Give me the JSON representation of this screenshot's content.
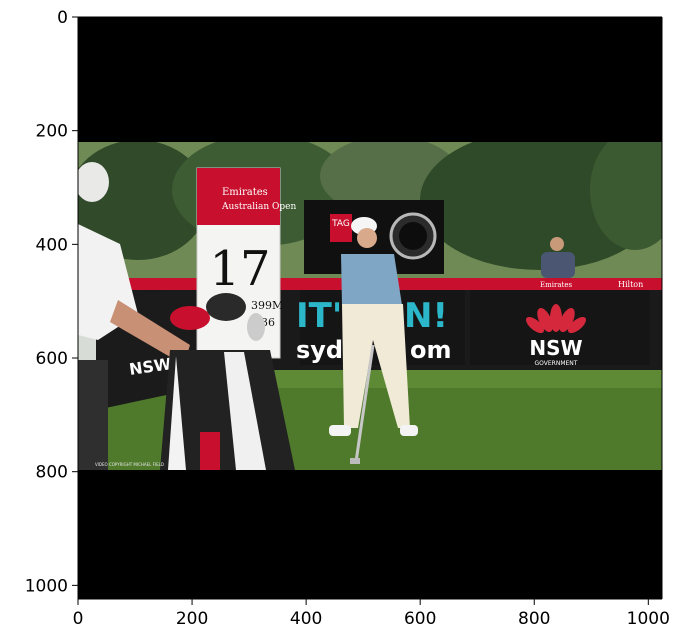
{
  "axes": {
    "x_ticks": [
      0,
      200,
      400,
      600,
      800,
      1000
    ],
    "y_ticks": [
      0,
      200,
      400,
      600,
      800,
      1000
    ],
    "xlim": [
      0,
      1024
    ],
    "ylim": [
      1024,
      0
    ]
  },
  "photo": {
    "hole_number": "17",
    "hole_distance": "399M",
    "hole_second_line": "436",
    "sponsor_name": "Emirates",
    "event_name": "Australian Open",
    "banner_text_1": "IT's",
    "banner_text_2": "N!",
    "banner_text_3": "syd",
    "banner_text_4": "om",
    "nsw_text": "NSW",
    "gov_text": "GOVERNMENT",
    "small_board": "Emirates",
    "copyright": "VIDEO COPYRIGHT MICHAEL FIELD",
    "hilton": "Hilton",
    "tag": "TAG",
    "colors": {
      "sky": "#d8dcd6",
      "grass": "#4f7a2b",
      "banner_black": "#1a1a1a",
      "emirates_red": "#c8102e",
      "teal": "#2bb7c9"
    }
  }
}
